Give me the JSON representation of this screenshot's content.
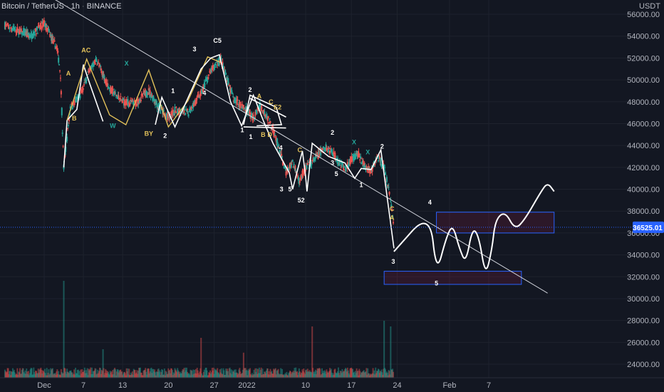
{
  "symbol": {
    "name": "Bitcoin / TetherUS",
    "interval": "1h",
    "exchange": "BINANCE"
  },
  "price_axis": {
    "currency": "USDT"
  },
  "last_price": {
    "label": "36525.01",
    "value": 36525.01,
    "color": "#2962ff"
  },
  "colors": {
    "up": "#26a69a",
    "down": "#ef5350",
    "wave_white": "#ffffff",
    "wave_yellow": "#e2c15a",
    "wave_green": "#26a69a",
    "zone_border": "#2962ff",
    "trendline": "#d1d4dc"
  },
  "chart_data": {
    "type": "candlestick",
    "title": "",
    "ylim": [
      23000,
      57000
    ],
    "y_ticks": [
      56000,
      54000,
      52000,
      50000,
      48000,
      46000,
      44000,
      42000,
      40000,
      38000,
      36000,
      34000,
      32000,
      30000,
      28000,
      26000,
      24000
    ],
    "x_ticks": [
      "Dec",
      "7",
      "13",
      "20",
      "27",
      "2022",
      "10",
      "17",
      "24",
      "Feb",
      "7"
    ],
    "x_tick_days": [
      0,
      6,
      12,
      19,
      26,
      31,
      40,
      47,
      54,
      62,
      68
    ],
    "x_range_days": [
      -6,
      78
    ],
    "price_path": [
      [
        -6,
        55000
      ],
      [
        -4,
        54500
      ],
      [
        -2,
        54000
      ],
      [
        0,
        55200
      ],
      [
        2,
        52800
      ],
      [
        2.5,
        50500
      ],
      [
        3,
        42000
      ],
      [
        4,
        47500
      ],
      [
        5.5,
        48500
      ],
      [
        7,
        51000
      ],
      [
        8,
        51800
      ],
      [
        9,
        50500
      ],
      [
        10,
        49200
      ],
      [
        12,
        48000
      ],
      [
        14,
        47800
      ],
      [
        15,
        48500
      ],
      [
        16,
        49000
      ],
      [
        17.5,
        47500
      ],
      [
        19,
        46500
      ],
      [
        20,
        47200
      ],
      [
        22,
        47000
      ],
      [
        24,
        48800
      ],
      [
        25.5,
        50800
      ],
      [
        27,
        51900
      ],
      [
        28,
        50000
      ],
      [
        29,
        48200
      ],
      [
        30,
        47800
      ],
      [
        31,
        47200
      ],
      [
        32,
        46500
      ],
      [
        33,
        47600
      ],
      [
        34,
        46800
      ],
      [
        35,
        45500
      ],
      [
        36,
        43500
      ],
      [
        37,
        41500
      ],
      [
        38,
        42500
      ],
      [
        39,
        40800
      ],
      [
        40,
        41900
      ],
      [
        41,
        42500
      ],
      [
        42,
        43200
      ],
      [
        43,
        43800
      ],
      [
        44,
        43500
      ],
      [
        45,
        42600
      ],
      [
        46,
        41800
      ],
      [
        47,
        42800
      ],
      [
        48,
        43200
      ],
      [
        49,
        42100
      ],
      [
        50,
        41600
      ],
      [
        51,
        43000
      ],
      [
        52,
        42000
      ],
      [
        53,
        39000
      ],
      [
        53.5,
        36600
      ]
    ],
    "volume_spikes": [
      [
        3,
        0.85
      ],
      [
        9,
        0.25
      ],
      [
        24,
        0.35
      ],
      [
        30.5,
        0.22
      ],
      [
        41,
        0.45
      ],
      [
        52,
        0.5
      ],
      [
        53,
        0.45
      ]
    ],
    "trendline": {
      "from": [
        -3,
        59000
      ],
      "to": [
        77,
        30500
      ]
    },
    "forecast_path": [
      [
        53.5,
        34300
      ],
      [
        59,
        38000
      ],
      [
        60,
        32200
      ],
      [
        61.5,
        35600
      ],
      [
        62.5,
        36800
      ],
      [
        63.5,
        34600
      ],
      [
        64.5,
        33200
      ],
      [
        65.5,
        36500
      ],
      [
        66.5,
        35700
      ],
      [
        67.5,
        32000
      ],
      [
        68.5,
        34500
      ],
      [
        69,
        37200
      ],
      [
        70.5,
        38000
      ],
      [
        72,
        36300
      ],
      [
        73.5,
        37200
      ],
      [
        76,
        39800
      ],
      [
        77,
        40600
      ],
      [
        78,
        39800
      ]
    ],
    "zones": [
      {
        "x": [
          60,
          78
        ],
        "y": [
          36000,
          37900
        ]
      },
      {
        "x": [
          52,
          73
        ],
        "y": [
          31300,
          32500
        ]
      }
    ],
    "wave_paths": [
      {
        "color": "white",
        "points": [
          [
            3,
            42000
          ],
          [
            3.5,
            46300
          ],
          [
            5,
            47300
          ],
          [
            6,
            51400
          ],
          [
            7,
            49600
          ],
          [
            9,
            46200
          ]
        ]
      },
      {
        "color": "yellow",
        "points": [
          [
            3.5,
            46300
          ],
          [
            6.5,
            51900
          ],
          [
            10,
            46800
          ],
          [
            12.5,
            45900
          ],
          [
            16,
            50900
          ],
          [
            19,
            45700
          ],
          [
            22,
            48100
          ],
          [
            25,
            52100
          ],
          [
            27,
            51600
          ]
        ]
      },
      {
        "color": "white",
        "points": [
          [
            17,
            45900
          ],
          [
            18,
            48400
          ],
          [
            20,
            45700
          ],
          [
            24,
            51000
          ],
          [
            25.5,
            52000
          ],
          [
            26.8,
            52300
          ],
          [
            28.5,
            48000
          ],
          [
            30.2,
            45800
          ],
          [
            32,
            48600
          ],
          [
            33.5,
            46300
          ],
          [
            35,
            44200
          ],
          [
            37.5,
            41500
          ],
          [
            38,
            40000
          ],
          [
            39.5,
            43500
          ],
          [
            40,
            41100
          ],
          [
            40.2,
            39800
          ],
          [
            41,
            44200
          ],
          [
            43.5,
            43000
          ],
          [
            46,
            42400
          ],
          [
            47.5,
            41000
          ],
          [
            48.5,
            41900
          ],
          [
            50,
            41800
          ],
          [
            51.5,
            43600
          ],
          [
            53.5,
            34600
          ]
        ]
      },
      {
        "color": "white",
        "points": [
          [
            30.5,
            45900
          ],
          [
            31.5,
            48600
          ],
          [
            35.5,
            47500
          ],
          [
            36.3,
            45900
          ],
          [
            32.5,
            45800
          ]
        ]
      },
      {
        "color": "white",
        "points": [
          [
            31.5,
            48300
          ],
          [
            37,
            46600
          ]
        ]
      },
      {
        "color": "white",
        "points": [
          [
            30.5,
            45700
          ],
          [
            37,
            45600
          ]
        ]
      }
    ],
    "wave_labels": [
      {
        "text": "A",
        "x": 3.7,
        "y": 50400,
        "color": "yellow"
      },
      {
        "text": "B",
        "x": 4.6,
        "y": 46300,
        "color": "yellow"
      },
      {
        "text": "AC",
        "x": 6.4,
        "y": 52500,
        "color": "yellow"
      },
      {
        "text": "X",
        "x": 12.6,
        "y": 51300,
        "color": "green"
      },
      {
        "text": "W",
        "x": 10.5,
        "y": 45600,
        "color": "green"
      },
      {
        "text": "BY",
        "x": 16,
        "y": 44900,
        "color": "yellow"
      },
      {
        "text": "1",
        "x": 19.7,
        "y": 48800,
        "color": "white"
      },
      {
        "text": "2",
        "x": 18.5,
        "y": 44700,
        "color": "white"
      },
      {
        "text": "3",
        "x": 23,
        "y": 52600,
        "color": "white"
      },
      {
        "text": "C5",
        "x": 26.5,
        "y": 53400,
        "color": "white"
      },
      {
        "text": "4",
        "x": 24.5,
        "y": 48600,
        "color": "white"
      },
      {
        "text": "2",
        "x": 31.5,
        "y": 48900,
        "color": "white"
      },
      {
        "text": "A",
        "x": 32.9,
        "y": 48300,
        "color": "yellow"
      },
      {
        "text": "C",
        "x": 34.7,
        "y": 47800,
        "color": "yellow"
      },
      {
        "text": "E2",
        "x": 35.7,
        "y": 47300,
        "color": "yellow"
      },
      {
        "text": "1",
        "x": 30.3,
        "y": 45200,
        "color": "white"
      },
      {
        "text": "1",
        "x": 31.6,
        "y": 44600,
        "color": "white"
      },
      {
        "text": "B",
        "x": 33.5,
        "y": 44800,
        "color": "yellow"
      },
      {
        "text": "D",
        "x": 34.5,
        "y": 44800,
        "color": "yellow"
      },
      {
        "text": "4",
        "x": 36.2,
        "y": 43600,
        "color": "white"
      },
      {
        "text": "C",
        "x": 39.1,
        "y": 43400,
        "color": "yellow"
      },
      {
        "text": "3",
        "x": 36.3,
        "y": 39800,
        "color": "white"
      },
      {
        "text": "5",
        "x": 37.6,
        "y": 39800,
        "color": "white"
      },
      {
        "text": "52",
        "x": 39.3,
        "y": 38800,
        "color": "white"
      },
      {
        "text": "2",
        "x": 44.1,
        "y": 45000,
        "color": "white"
      },
      {
        "text": "X",
        "x": 47.4,
        "y": 44100,
        "color": "green"
      },
      {
        "text": "X",
        "x": 49.5,
        "y": 43200,
        "color": "green"
      },
      {
        "text": "2",
        "x": 51.7,
        "y": 43700,
        "color": "white"
      },
      {
        "text": "3",
        "x": 44.1,
        "y": 42200,
        "color": "white"
      },
      {
        "text": "5",
        "x": 44.7,
        "y": 41200,
        "color": "white"
      },
      {
        "text": "1",
        "x": 48.5,
        "y": 40200,
        "color": "white"
      },
      {
        "text": "C",
        "x": 53.2,
        "y": 38000,
        "color": "yellow"
      },
      {
        "text": "A",
        "x": 53.2,
        "y": 37200,
        "color": "yellow"
      },
      {
        "text": "3",
        "x": 53.4,
        "y": 33200,
        "color": "white"
      },
      {
        "text": "4",
        "x": 59,
        "y": 38600,
        "color": "white"
      },
      {
        "text": "5",
        "x": 60,
        "y": 31200,
        "color": "white"
      }
    ]
  }
}
